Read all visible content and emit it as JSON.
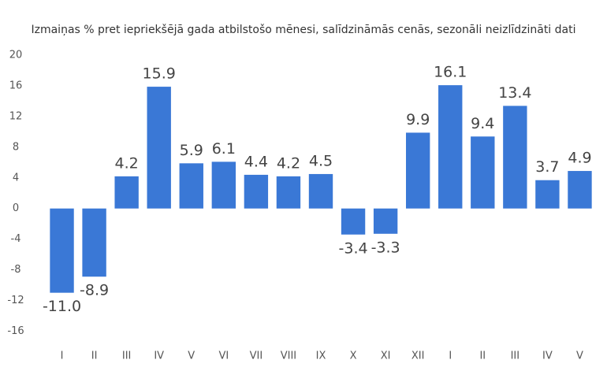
{
  "chart_data": {
    "type": "bar",
    "subtitle": "Izmaiņas % pret iepriekšējā gada atbilstošo mēnesi, salīdzināmās cenās, sezonāli neizlīdzināti dati",
    "categories": [
      "I",
      "II",
      "III",
      "IV",
      "V",
      "VI",
      "VII",
      "VIII",
      "IX",
      "X",
      "XI",
      "XII",
      "I",
      "II",
      "III",
      "IV",
      "V"
    ],
    "values": [
      -11.0,
      -8.9,
      4.2,
      15.9,
      5.9,
      6.1,
      4.4,
      4.2,
      4.5,
      -3.4,
      -3.3,
      9.9,
      16.1,
      9.4,
      13.4,
      3.7,
      4.9
    ],
    "value_labels": [
      "-11.0",
      "-8.9",
      "4.2",
      "15.9",
      "5.9",
      "6.1",
      "4.4",
      "4.2",
      "4.5",
      "-3.4",
      "-3.3",
      "9.9",
      "16.1",
      "9.4",
      "13.4",
      "3.7",
      "4.9"
    ],
    "color": "#3a78d6",
    "ylim": [
      -17,
      21
    ],
    "yticks": [
      -16,
      -12,
      -8,
      -4,
      0,
      4,
      8,
      12,
      16,
      20
    ],
    "grid": false
  }
}
